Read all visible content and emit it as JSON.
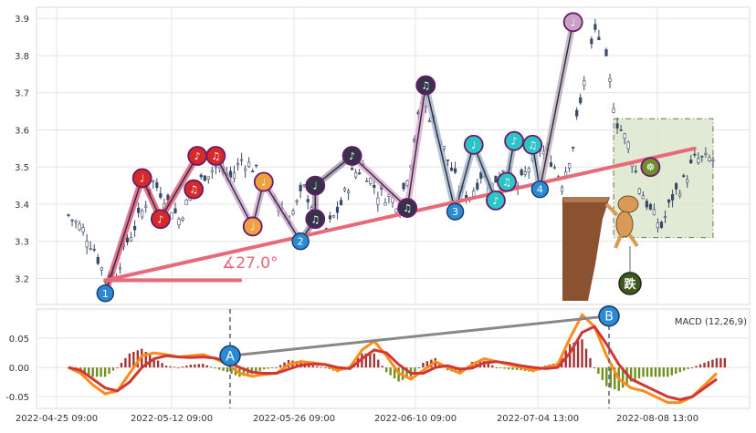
{
  "chart_data": [
    {
      "type": "candlestick",
      "panel": "price",
      "ylim": [
        3.13,
        3.93
      ],
      "y_ticks": [
        "3.2",
        "3.3",
        "3.4",
        "3.5",
        "3.6",
        "3.7",
        "3.8",
        "3.9"
      ],
      "price_path": [
        [
          0,
          3.37
        ],
        [
          4,
          3.33
        ],
        [
          7,
          3.28
        ],
        [
          10,
          3.2
        ],
        [
          13,
          3.22
        ],
        [
          16,
          3.3
        ],
        [
          20,
          3.38
        ],
        [
          23,
          3.46
        ],
        [
          26,
          3.42
        ],
        [
          30,
          3.36
        ],
        [
          33,
          3.42
        ],
        [
          37,
          3.48
        ],
        [
          40,
          3.5
        ],
        [
          44,
          3.47
        ],
        [
          47,
          3.52
        ],
        [
          50,
          3.5
        ],
        [
          53,
          3.46
        ],
        [
          56,
          3.42
        ],
        [
          60,
          3.36
        ],
        [
          64,
          3.44
        ],
        [
          67,
          3.38
        ],
        [
          70,
          3.33
        ],
        [
          74,
          3.4
        ],
        [
          77,
          3.48
        ],
        [
          80,
          3.5
        ],
        [
          84,
          3.43
        ],
        [
          87,
          3.42
        ],
        [
          90,
          3.4
        ],
        [
          93,
          3.52
        ],
        [
          96,
          3.68
        ],
        [
          100,
          3.6
        ],
        [
          103,
          3.52
        ],
        [
          106,
          3.44
        ],
        [
          109,
          3.42
        ],
        [
          112,
          3.48
        ],
        [
          115,
          3.45
        ],
        [
          118,
          3.5
        ],
        [
          122,
          3.44
        ],
        [
          125,
          3.5
        ],
        [
          128,
          3.55
        ],
        [
          131,
          3.52
        ],
        [
          134,
          3.46
        ],
        [
          137,
          3.56
        ],
        [
          140,
          3.75
        ],
        [
          143,
          3.86
        ],
        [
          146,
          3.78
        ],
        [
          149,
          3.62
        ],
        [
          152,
          3.56
        ],
        [
          155,
          3.45
        ],
        [
          158,
          3.38
        ],
        [
          161,
          3.34
        ],
        [
          164,
          3.42
        ],
        [
          167,
          3.46
        ],
        [
          170,
          3.52
        ]
      ],
      "trendline": {
        "from_bar": 10,
        "from": 3.195,
        "to_bar": 170,
        "to": 3.55,
        "angle_label": "∡27.0°",
        "color": "#e66a7a"
      },
      "wave_points": [
        {
          "bar": 10,
          "value": 3.16,
          "label": "1",
          "kind": "num"
        },
        {
          "bar": 20,
          "value": 3.47,
          "glyph": "♩",
          "color": "#d42a2a"
        },
        {
          "bar": 25,
          "value": 3.36,
          "glyph": "♪",
          "color": "#d42a2a"
        },
        {
          "bar": 34,
          "value": 3.44,
          "glyph": "♫",
          "color": "#d42a2a"
        },
        {
          "bar": 35,
          "value": 3.53,
          "glyph": "♪",
          "color": "#d42a2a"
        },
        {
          "bar": 40,
          "value": 3.53,
          "glyph": "♫",
          "color": "#d42a2a"
        },
        {
          "bar": 50,
          "value": 3.34,
          "glyph": "♩",
          "color": "#f0a040"
        },
        {
          "bar": 53,
          "value": 3.46,
          "glyph": "♩",
          "color": "#f0a040"
        },
        {
          "bar": 63,
          "value": 3.3,
          "label": "2",
          "kind": "num"
        },
        {
          "bar": 67,
          "value": 3.45,
          "glyph": "♩",
          "color": "#33334a"
        },
        {
          "bar": 67,
          "value": 3.36,
          "glyph": "♫",
          "color": "#33334a"
        },
        {
          "bar": 77,
          "value": 3.53,
          "glyph": "♪",
          "color": "#33334a"
        },
        {
          "bar": 92,
          "value": 3.39,
          "glyph": "♫",
          "color": "#33334a"
        },
        {
          "bar": 97,
          "value": 3.72,
          "glyph": "♫",
          "color": "#33334a"
        },
        {
          "bar": 105,
          "value": 3.38,
          "label": "3",
          "kind": "num"
        },
        {
          "bar": 110,
          "value": 3.56,
          "glyph": "♩",
          "color": "#2cc4c4"
        },
        {
          "bar": 116,
          "value": 3.41,
          "glyph": "♪",
          "color": "#2cc4c4"
        },
        {
          "bar": 119,
          "value": 3.46,
          "glyph": "♫",
          "color": "#2cc4c4"
        },
        {
          "bar": 121,
          "value": 3.57,
          "glyph": "♪",
          "color": "#2cc4c4"
        },
        {
          "bar": 126,
          "value": 3.56,
          "glyph": "♫",
          "color": "#2cc4c4"
        },
        {
          "bar": 128,
          "value": 3.44,
          "label": "4",
          "kind": "num"
        },
        {
          "bar": 137,
          "value": 3.89,
          "glyph": "♩",
          "color": "#c8a0c8"
        },
        {
          "bar": 158,
          "value": 3.5,
          "glyph": "☸",
          "color": "#6e8f2a"
        }
      ],
      "shaded_zone": {
        "from_bar": 148,
        "to_bar": 175,
        "top": 3.63,
        "bottom": 3.31,
        "fill": "#dde8d0"
      },
      "sticker": {
        "label": "跌",
        "color": "#3d5a1a"
      }
    },
    {
      "type": "line",
      "panel": "macd",
      "title": "MACD (12,26,9)",
      "ylim": [
        -0.07,
        0.1
      ],
      "y_ticks": [
        "0.05",
        "0.00",
        "-0.05"
      ],
      "x_tick_labels": [
        "2022-04-25 09:00",
        "2022-05-12 09:00",
        "2022-05-26 09:00",
        "2022-06-10 09:00",
        "2022-07-04 13:00",
        "2022-08-08 13:00"
      ],
      "series": [
        {
          "color": "#ff8c1a",
          "values": [
            0,
            -0.01,
            -0.03,
            -0.045,
            -0.04,
            -0.01,
            0.02,
            0.025,
            0.022,
            0.018,
            0.02,
            0.022,
            0.015,
            0.005,
            -0.01,
            -0.015,
            -0.012,
            -0.01,
            0.005,
            0.01,
            0.008,
            0.005,
            -0.005,
            0.0,
            0.03,
            0.045,
            0.02,
            -0.01,
            -0.02,
            -0.005,
            0.01,
            0.0,
            -0.01,
            0.005,
            0.015,
            0.01,
            0.005,
            0.0,
            -0.005,
            0.0,
            0.005,
            0.05,
            0.09,
            0.07,
            0.02,
            -0.02,
            -0.035,
            -0.04,
            -0.05,
            -0.06,
            -0.06,
            -0.05,
            -0.03,
            -0.01
          ]
        },
        {
          "color": "#d03838",
          "values": [
            0,
            -0.005,
            -0.02,
            -0.035,
            -0.04,
            -0.025,
            0.0,
            0.015,
            0.02,
            0.018,
            0.017,
            0.018,
            0.016,
            0.01,
            0.0,
            -0.008,
            -0.01,
            -0.01,
            -0.003,
            0.004,
            0.006,
            0.005,
            0.0,
            -0.002,
            0.015,
            0.03,
            0.025,
            0.005,
            -0.01,
            -0.01,
            0.0,
            0.003,
            -0.003,
            -0.001,
            0.008,
            0.01,
            0.007,
            0.003,
            0.0,
            -0.002,
            0.0,
            0.025,
            0.06,
            0.07,
            0.04,
            0.005,
            -0.02,
            -0.03,
            -0.04,
            -0.05,
            -0.055,
            -0.05,
            -0.035,
            -0.02
          ]
        }
      ],
      "divergence": {
        "a_label": "A",
        "a_value": 0.02,
        "b_label": "B",
        "b_value": 0.088,
        "color": "#888888"
      }
    }
  ]
}
